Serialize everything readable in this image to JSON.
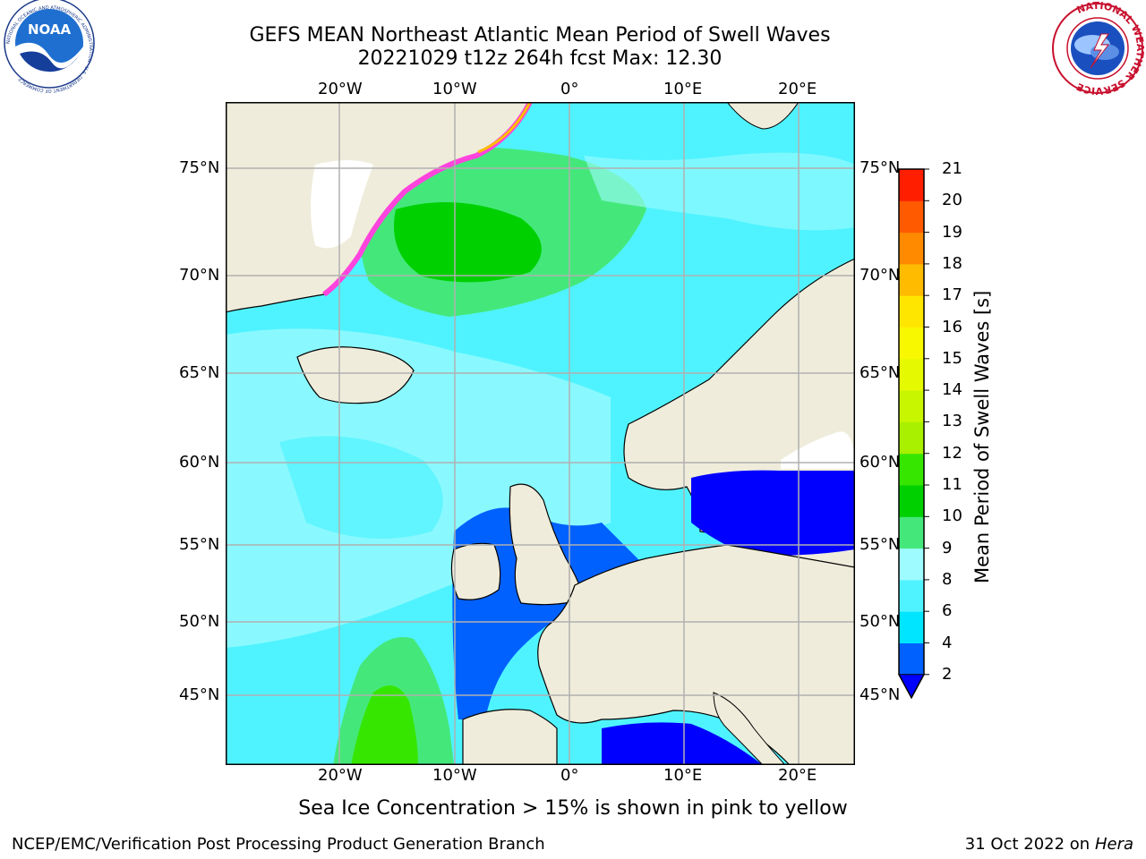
{
  "title": {
    "line1": "GEFS MEAN Northeast Atlantic Mean Period of Swell Waves",
    "line2": "20221029 t12z 264h fcst   Max: 12.30"
  },
  "axes": {
    "lon_top": [
      "20°W",
      "10°W",
      "0°",
      "10°E",
      "20°E"
    ],
    "lon_bottom": [
      "20°W",
      "10°W",
      "0°",
      "10°E",
      "20°E"
    ],
    "lat_left": [
      "75°N",
      "70°N",
      "65°N",
      "60°N",
      "55°N",
      "50°N",
      "45°N"
    ],
    "lat_right": [
      "75°N",
      "70°N",
      "65°N",
      "60°N",
      "55°N",
      "50°N",
      "45°N"
    ]
  },
  "colorbar": {
    "title": "Mean Period of Swell Waves [s]",
    "ticks": [
      "2",
      "4",
      "6",
      "8",
      "9",
      "10",
      "11",
      "12",
      "13",
      "14",
      "15",
      "16",
      "17",
      "18",
      "19",
      "20",
      "21"
    ],
    "colors": [
      "#0061ff",
      "#00e5ff",
      "#4ff3ff",
      "#9efbff",
      "#44e87a",
      "#00d000",
      "#37e600",
      "#a8f000",
      "#c8f500",
      "#e5f900",
      "#f8f900",
      "#ffe600",
      "#ffbb00",
      "#ff8a00",
      "#ff5a00",
      "#ff1e00"
    ],
    "under_color": "#0000ff"
  },
  "colors": {
    "land": "#efecdb",
    "ocean_main": "#4ff3ff",
    "grid": "#b0b0b0",
    "ice": "#ff44dd"
  },
  "caption": "Sea Ice Concentration > 15% is shown in pink to yellow",
  "footer": {
    "left": "NCEP/EMC/Verification Post Processing Product Generation Branch",
    "right_prefix": "31 Oct 2022 on ",
    "right_host": "Hera"
  },
  "logos": {
    "noaa": {
      "icon": "noaa-logo",
      "text": "NOAA",
      "ring_text": "NATIONAL OCEANIC AND ATMOSPHERIC ADMINISTRATION · U.S. DEPARTMENT OF COMMERCE"
    },
    "nws": {
      "icon": "nws-logo",
      "ring_text": "NATIONAL WEATHER SERVICE"
    }
  }
}
